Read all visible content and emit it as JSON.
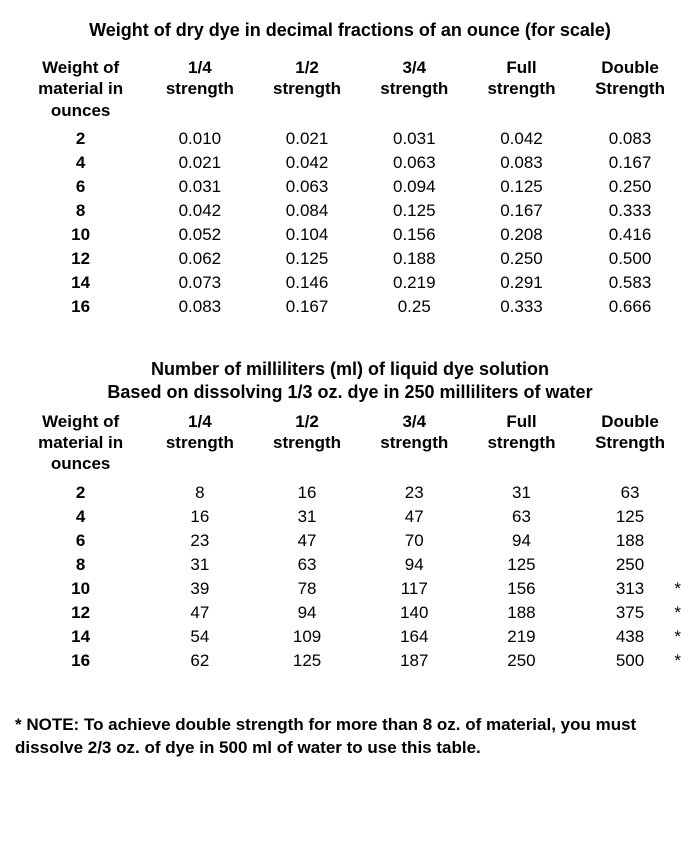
{
  "table1": {
    "title": "Weight of dry dye in decimal fractions of an ounce (for scale)",
    "columns": [
      "Weight of\nmaterial in\nounces",
      "1/4\nstrength",
      "1/2\nstrength",
      "3/4\nstrength",
      "Full\nstrength",
      "Double\nStrength"
    ],
    "rows": [
      [
        "2",
        "0.010",
        "0.021",
        "0.031",
        "0.042",
        "0.083"
      ],
      [
        "4",
        "0.021",
        "0.042",
        "0.063",
        "0.083",
        "0.167"
      ],
      [
        "6",
        "0.031",
        "0.063",
        "0.094",
        "0.125",
        "0.250"
      ],
      [
        "8",
        "0.042",
        "0.084",
        "0.125",
        "0.167",
        "0.333"
      ],
      [
        "10",
        "0.052",
        "0.104",
        "0.156",
        "0.208",
        "0.416"
      ],
      [
        "12",
        "0.062",
        "0.125",
        "0.188",
        "0.250",
        "0.500"
      ],
      [
        "14",
        "0.073",
        "0.146",
        "0.219",
        "0.291",
        "0.583"
      ],
      [
        "16",
        "0.083",
        "0.167",
        "0.25",
        "0.333",
        "0.666"
      ]
    ]
  },
  "table2": {
    "title": "Number of milliliters (ml) of liquid dye solution",
    "subtitle": "Based on dissolving 1/3 oz. dye in 250 milliliters of water",
    "columns": [
      "Weight of\nmaterial in\nounces",
      "1/4\nstrength",
      "1/2\nstrength",
      "3/4\nstrength",
      "Full\nstrength",
      "Double\nStrength"
    ],
    "rows": [
      {
        "cells": [
          "2",
          "8",
          "16",
          "23",
          "31",
          "63"
        ],
        "star": false
      },
      {
        "cells": [
          "4",
          "16",
          "31",
          "47",
          "63",
          "125"
        ],
        "star": false
      },
      {
        "cells": [
          "6",
          "23",
          "47",
          "70",
          "94",
          "188"
        ],
        "star": false
      },
      {
        "cells": [
          "8",
          "31",
          "63",
          "94",
          "125",
          "250"
        ],
        "star": false
      },
      {
        "cells": [
          "10",
          "39",
          "78",
          "117",
          "156",
          "313"
        ],
        "star": true
      },
      {
        "cells": [
          "12",
          "47",
          "94",
          "140",
          "188",
          "375"
        ],
        "star": true
      },
      {
        "cells": [
          "14",
          "54",
          "109",
          "164",
          "219",
          "438"
        ],
        "star": true
      },
      {
        "cells": [
          "16",
          "62",
          "125",
          "187",
          "250",
          "500"
        ],
        "star": true
      }
    ]
  },
  "note": "* NOTE: To achieve double strength for more than 8 oz. of material, you must dissolve 2/3 oz. of dye in 500 ml of water to use this table.",
  "colors": {
    "text": "#000000",
    "background": "#ffffff"
  },
  "typography": {
    "font_family": "Helvetica",
    "title_fontsize_pt": 14,
    "body_fontsize_pt": 13,
    "title_weight": "bold",
    "header_weight": "bold"
  }
}
